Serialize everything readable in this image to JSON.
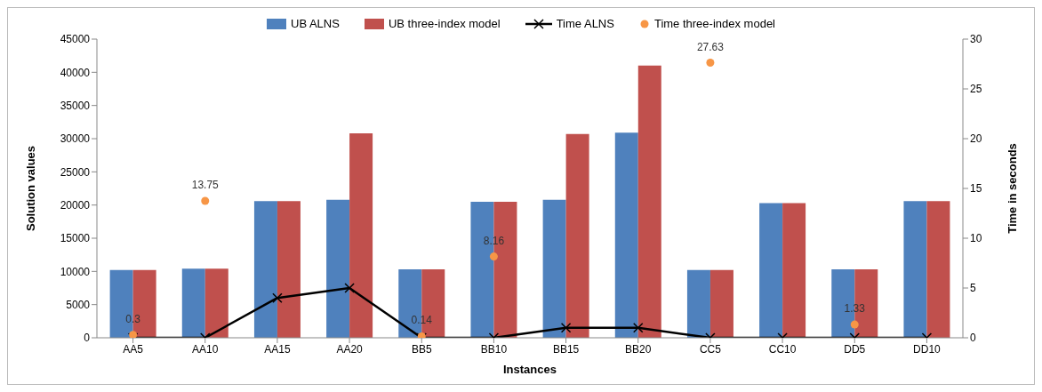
{
  "chart_data": {
    "type": "bar",
    "xlabel": "Instances",
    "ylabel": "Solution values",
    "y2label": "Time in seconds",
    "categories": [
      "AA5",
      "AA10",
      "AA15",
      "AA20",
      "BB5",
      "BB10",
      "BB15",
      "BB20",
      "CC5",
      "CC10",
      "DD5",
      "DD10"
    ],
    "series": [
      {
        "name": "UB ALNS",
        "color": "#4f81bd",
        "values": [
          10200,
          10400,
          20600,
          20800,
          10300,
          20500,
          20800,
          30900,
          10200,
          20300,
          10300,
          20600
        ]
      },
      {
        "name": "UB three-index model",
        "color": "#c0504d",
        "values": [
          10200,
          10400,
          20600,
          30800,
          10300,
          20500,
          30700,
          41000,
          10200,
          20300,
          10300,
          20600
        ]
      },
      {
        "name": "Time ALNS",
        "type": "line",
        "axis": "y2",
        "color": "#000000",
        "marker": "cross",
        "values": [
          0,
          0,
          4,
          5,
          0,
          0,
          1,
          1,
          0,
          0,
          0,
          0
        ]
      },
      {
        "name": "Time three-index model",
        "type": "scatter",
        "axis": "y2",
        "color": "#f79646",
        "marker": "circle",
        "values": [
          0.3,
          13.75,
          null,
          null,
          0.14,
          8.16,
          null,
          null,
          27.63,
          null,
          1.33,
          null
        ],
        "value_labels": [
          "0.3",
          "13.75",
          null,
          null,
          "0.14",
          "8.16",
          null,
          null,
          "27.63",
          null,
          "1.33",
          null
        ]
      }
    ],
    "ylim": [
      0,
      45000
    ],
    "yticks": [
      0,
      5000,
      10000,
      15000,
      20000,
      25000,
      30000,
      35000,
      40000,
      45000
    ],
    "y2lim": [
      0,
      30
    ],
    "y2ticks": [
      0,
      5,
      10,
      15,
      20,
      25,
      30
    ],
    "grid": false,
    "legend": "top"
  }
}
